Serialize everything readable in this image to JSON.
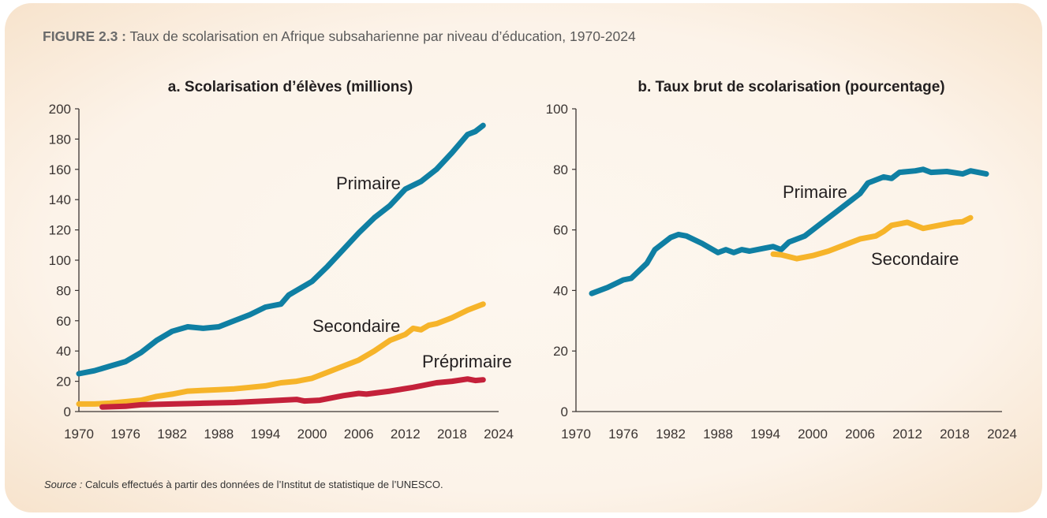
{
  "figure": {
    "label": "FIGURE 2.3 :",
    "title": "Taux de scolarisation en Afrique subsaharienne par niveau d’éducation, 1970-2024",
    "source_label": "Source :",
    "source_text": "Calculs effectués à partir des données de l’Institut de statistique de l’UNESCO."
  },
  "colors": {
    "primaire": "#0f7fa3",
    "secondaire": "#f6b42a",
    "preprimaire": "#c4213a"
  },
  "chart_data": [
    {
      "type": "line",
      "title": "a. Scolarisation d’élèves (millions)",
      "xlim": [
        1970,
        2024
      ],
      "ylim": [
        0,
        200
      ],
      "xticks": [
        "1970",
        "1976",
        "1982",
        "1988",
        "1994",
        "2000",
        "2006",
        "2012",
        "2018",
        "2024"
      ],
      "yticks": [
        "0",
        "20",
        "40",
        "60",
        "80",
        "100",
        "120",
        "140",
        "160",
        "180",
        "200"
      ],
      "grid": false,
      "series": [
        {
          "name": "Primaire",
          "color": "#0f7fa3",
          "x": [
            1970,
            1972,
            1974,
            1976,
            1978,
            1980,
            1982,
            1984,
            1986,
            1988,
            1990,
            1992,
            1994,
            1996,
            1997,
            1998,
            2000,
            2002,
            2004,
            2006,
            2008,
            2010,
            2012,
            2014,
            2016,
            2018,
            2020,
            2021,
            2022
          ],
          "y": [
            25,
            27,
            30,
            33,
            39,
            47,
            53,
            56,
            55,
            56,
            60,
            64,
            69,
            71,
            77,
            80,
            86,
            96,
            107,
            118,
            128,
            136,
            147,
            152,
            160,
            171,
            183,
            185,
            189
          ]
        },
        {
          "name": "Secondaire",
          "color": "#f6b42a",
          "x": [
            1970,
            1972,
            1974,
            1976,
            1978,
            1980,
            1982,
            1984,
            1986,
            1988,
            1990,
            1992,
            1994,
            1996,
            1998,
            2000,
            2002,
            2004,
            2006,
            2008,
            2010,
            2012,
            2013,
            2014,
            2015,
            2016,
            2018,
            2020,
            2022
          ],
          "y": [
            5,
            5,
            5.5,
            6.5,
            7.5,
            10,
            11.5,
            13.5,
            14,
            14.5,
            15,
            16,
            17,
            19,
            20,
            22,
            26,
            30,
            34,
            40,
            47,
            51,
            55,
            54,
            57,
            58,
            62,
            67,
            71
          ]
        },
        {
          "name": "Préprimaire",
          "color": "#c4213a",
          "x": [
            1973,
            1976,
            1978,
            1982,
            1986,
            1990,
            1994,
            1998,
            1999,
            2001,
            2004,
            2006,
            2007,
            2010,
            2013,
            2016,
            2018,
            2020,
            2021,
            2022
          ],
          "y": [
            3,
            3.5,
            4.5,
            5,
            5.5,
            6,
            7,
            8,
            7,
            7.5,
            10.5,
            12,
            11.5,
            13.5,
            16,
            19,
            20,
            21.5,
            20.5,
            21
          ]
        }
      ]
    },
    {
      "type": "line",
      "title": "b. Taux brut de scolarisation (pourcentage)",
      "xlim": [
        1970,
        2024
      ],
      "ylim": [
        0,
        100
      ],
      "xticks": [
        "1970",
        "1976",
        "1982",
        "1988",
        "1994",
        "2000",
        "2006",
        "2012",
        "2018",
        "2024"
      ],
      "yticks": [
        "0",
        "20",
        "40",
        "60",
        "80",
        "100"
      ],
      "grid": false,
      "series": [
        {
          "name": "Primaire",
          "color": "#0f7fa3",
          "x": [
            1972,
            1974,
            1976,
            1977,
            1979,
            1980,
            1982,
            1983,
            1984,
            1986,
            1988,
            1989,
            1990,
            1991,
            1992,
            1994,
            1995,
            1996,
            1997,
            1999,
            2001,
            2003,
            2005,
            2006,
            2007,
            2009,
            2010,
            2011,
            2013,
            2014,
            2015,
            2017,
            2019,
            2020,
            2022
          ],
          "y": [
            39,
            41,
            43.5,
            44,
            49,
            53.5,
            57.5,
            58.5,
            58,
            55.5,
            52.5,
            53.5,
            52.5,
            53.5,
            53,
            54,
            54.5,
            53.5,
            56,
            58,
            62,
            66,
            70,
            72,
            75.5,
            77.5,
            77,
            79,
            79.5,
            80,
            79,
            79.3,
            78.5,
            79.5,
            78.5
          ]
        },
        {
          "name": "Secondaire",
          "color": "#f6b42a",
          "x": [
            1995,
            1996,
            1998,
            2000,
            2002,
            2004,
            2006,
            2007,
            2008,
            2009,
            2010,
            2012,
            2014,
            2016,
            2018,
            2019,
            2020
          ],
          "y": [
            52,
            51.8,
            50.5,
            51.5,
            53,
            55,
            57,
            57.5,
            58,
            59.5,
            61.5,
            62.5,
            60.5,
            61.5,
            62.5,
            62.7,
            64
          ]
        }
      ]
    }
  ]
}
